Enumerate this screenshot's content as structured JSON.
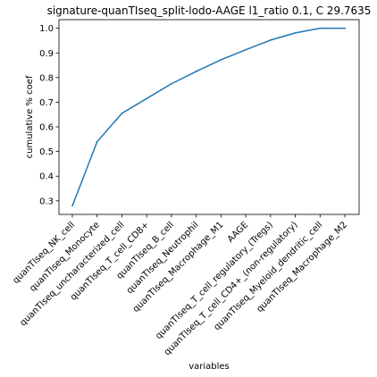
{
  "chart_data": {
    "type": "line",
    "title": "signature-quanTIseq_split-lodo-AAGE l1_ratio 0.1, C 29.7635",
    "xlabel": "variables",
    "ylabel": "cumulative % coef",
    "categories": [
      "quanTIseq_NK_cell",
      "quanTIseq_Monocyte",
      "quanTIseq_uncharacterized_cell",
      "quanTIseq_T_cell_CD8+",
      "quanTIseq_B_cell",
      "quanTIseq_Neutrophil",
      "quanTIseq_Macrophage_M1",
      "AAGE",
      "quanTIseq_T_cell_regulatory_(Tregs)",
      "quanTIseq_T_cell_CD4+_(non-regulatory)",
      "quanTIseq_Myeloid_dendritic_cell",
      "quanTIseq_Macrophage_M2"
    ],
    "series": [
      {
        "color": "#1f77b4",
        "values": [
          0.28,
          0.54,
          0.655,
          0.715,
          0.775,
          0.825,
          0.872,
          0.913,
          0.952,
          0.981,
          1.0,
          1.0
        ]
      }
    ],
    "yticks": [
      "0.3",
      "0.4",
      "0.5",
      "0.6",
      "0.7",
      "0.8",
      "0.9",
      "1.0"
    ],
    "ylim": [
      0.245,
      1.035
    ],
    "grid": false,
    "legend": "none"
  }
}
